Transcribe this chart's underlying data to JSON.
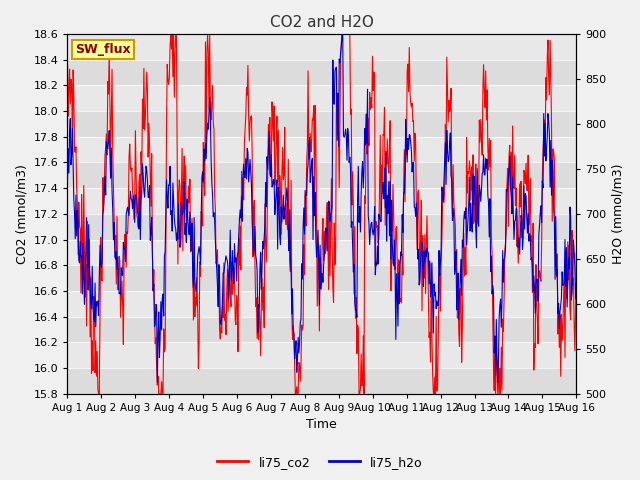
{
  "title": "CO2 and H2O",
  "xlabel": "Time",
  "ylabel_left": "CO2 (mmol/m3)",
  "ylabel_right": "H2O (mmol/m3)",
  "ylim_left": [
    15.8,
    18.6
  ],
  "ylim_right": [
    500,
    900
  ],
  "yticks_left": [
    15.8,
    16.0,
    16.2,
    16.4,
    16.6,
    16.8,
    17.0,
    17.2,
    17.4,
    17.6,
    17.8,
    18.0,
    18.2,
    18.4,
    18.6
  ],
  "yticks_right": [
    500,
    550,
    600,
    650,
    700,
    750,
    800,
    850,
    900
  ],
  "xlim": [
    0,
    15
  ],
  "xtick_positions": [
    0,
    1,
    2,
    3,
    4,
    5,
    6,
    7,
    8,
    9,
    10,
    11,
    12,
    13,
    14,
    15
  ],
  "xtick_labels": [
    "Aug 1",
    "Aug 2",
    "Aug 3",
    "Aug 4",
    "Aug 5",
    "Aug 6",
    "Aug 7",
    "Aug 8",
    "Aug 9",
    "Aug 10",
    "Aug 11",
    "Aug 12",
    "Aug 13",
    "Aug 14",
    "Aug 15",
    "Aug 16"
  ],
  "co2_color": "#ff0000",
  "h2o_color": "#0000cc",
  "line_width": 0.8,
  "plot_bg_light": "#e8e8e8",
  "plot_bg_dark": "#d0d0d0",
  "fig_bg_color": "#f0f0f0",
  "legend_co2": "li75_co2",
  "legend_h2o": "li75_h2o",
  "annotation_text": "SW_flux",
  "annotation_bg": "#ffff99",
  "annotation_border": "#cc9900",
  "title_color": "#333333",
  "band_colors": [
    "#dcdcdc",
    "#e8e8e8"
  ]
}
